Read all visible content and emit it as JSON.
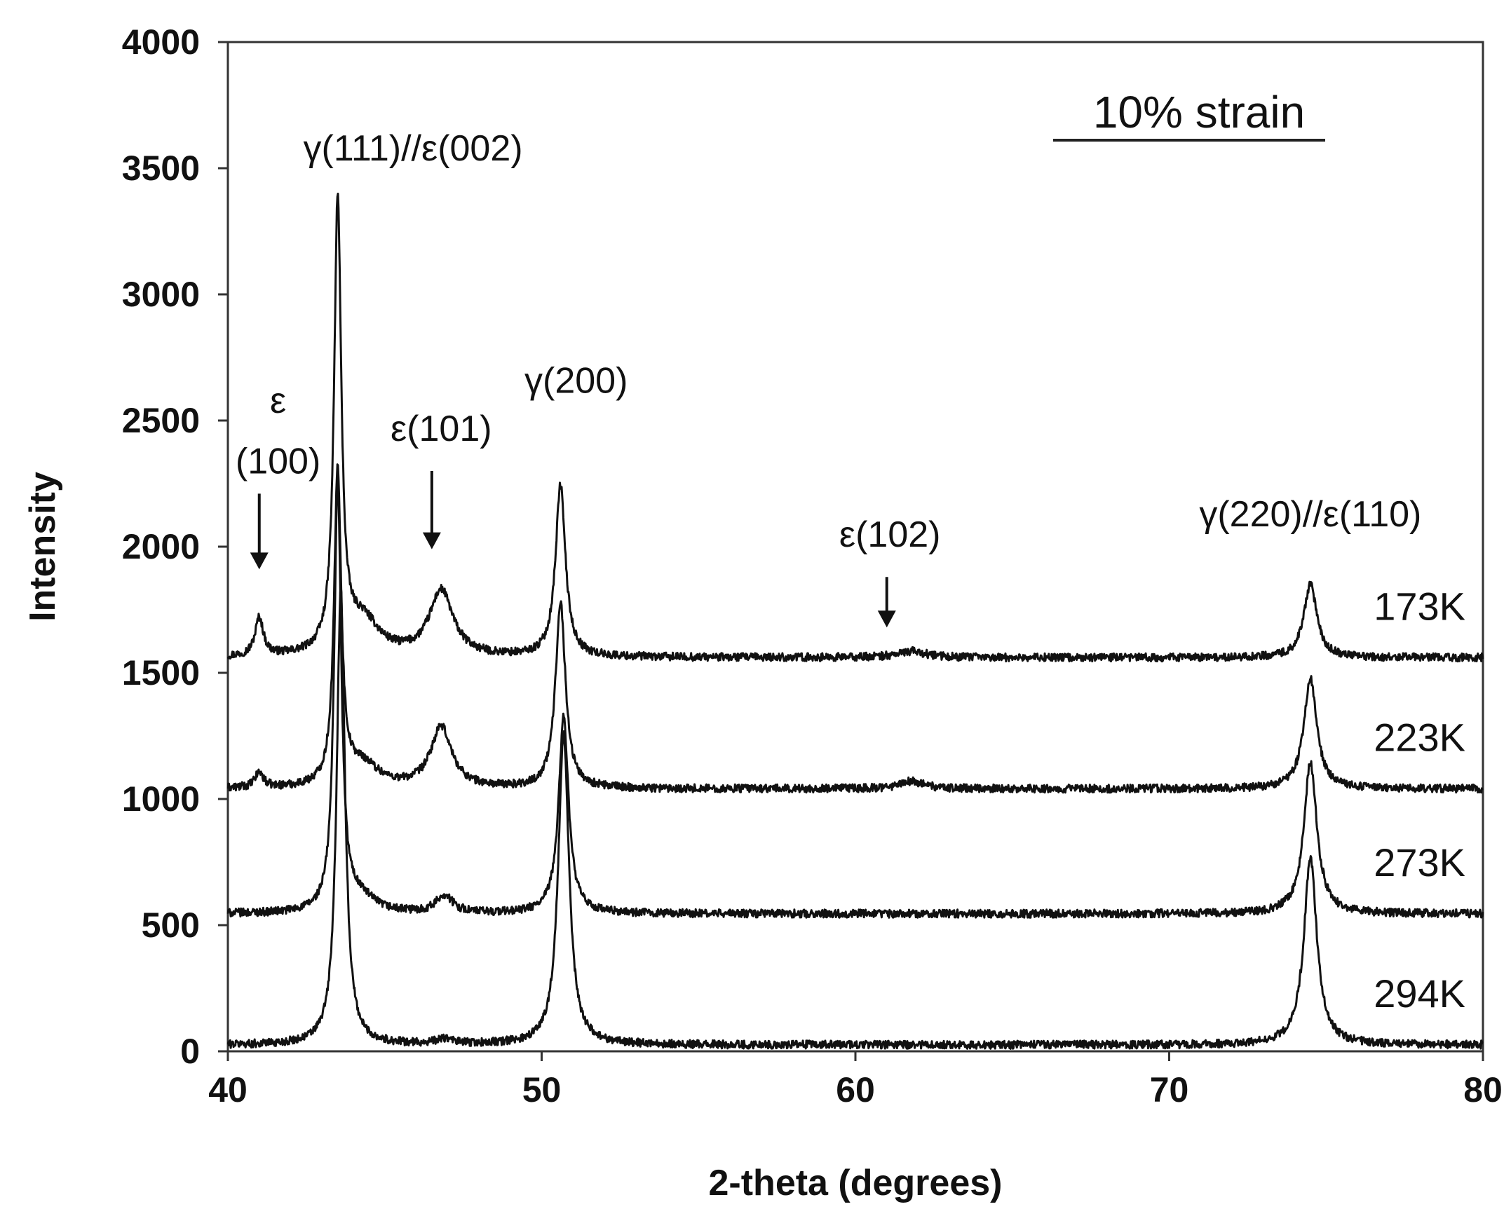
{
  "chart_data": {
    "type": "line",
    "title": "10% strain",
    "xlabel": "2-theta (degrees)",
    "ylabel": "Intensity",
    "xlim": [
      40,
      80
    ],
    "ylim": [
      0,
      4000
    ],
    "xticks": [
      "40",
      "50",
      "60",
      "70",
      "80"
    ],
    "yticks": [
      "0",
      "500",
      "1000",
      "1500",
      "2000",
      "2500",
      "3000",
      "3500",
      "4000"
    ],
    "grid": false,
    "legend": "none",
    "line_color": "#111111",
    "series": [
      {
        "name": "173K",
        "baseline": 1560,
        "peaks": [
          {
            "x": 41.0,
            "height": 150,
            "width": 0.35
          },
          {
            "x": 43.5,
            "height": 1780,
            "width": 0.3
          },
          {
            "x": 44.3,
            "height": 140,
            "width": 1.4
          },
          {
            "x": 46.8,
            "height": 260,
            "width": 1.0
          },
          {
            "x": 50.6,
            "height": 680,
            "width": 0.42
          },
          {
            "x": 61.8,
            "height": 25,
            "width": 1.2
          },
          {
            "x": 74.5,
            "height": 290,
            "width": 0.55
          }
        ]
      },
      {
        "name": "223K",
        "baseline": 1040,
        "peaks": [
          {
            "x": 41.0,
            "height": 60,
            "width": 0.35
          },
          {
            "x": 43.5,
            "height": 1250,
            "width": 0.3
          },
          {
            "x": 44.3,
            "height": 90,
            "width": 1.4
          },
          {
            "x": 46.8,
            "height": 240,
            "width": 0.9
          },
          {
            "x": 50.6,
            "height": 740,
            "width": 0.42
          },
          {
            "x": 61.8,
            "height": 30,
            "width": 1.0
          },
          {
            "x": 74.5,
            "height": 440,
            "width": 0.55
          }
        ]
      },
      {
        "name": "273K",
        "baseline": 545,
        "peaks": [
          {
            "x": 43.5,
            "height": 1700,
            "width": 0.3
          },
          {
            "x": 44.2,
            "height": 60,
            "width": 1.2
          },
          {
            "x": 46.9,
            "height": 70,
            "width": 0.7
          },
          {
            "x": 50.7,
            "height": 780,
            "width": 0.42
          },
          {
            "x": 74.5,
            "height": 600,
            "width": 0.55
          }
        ]
      },
      {
        "name": "294K",
        "baseline": 25,
        "peaks": [
          {
            "x": 43.6,
            "height": 1800,
            "width": 0.35
          },
          {
            "x": 46.9,
            "height": 20,
            "width": 0.7
          },
          {
            "x": 50.7,
            "height": 1230,
            "width": 0.45
          },
          {
            "x": 74.5,
            "height": 740,
            "width": 0.55
          }
        ]
      }
    ],
    "annotations": [
      {
        "text": "γ(111)//ε(002)",
        "x": 45.9,
        "y": 3530,
        "arrow": false
      },
      {
        "text": "ε",
        "x": 41.6,
        "y": 2530,
        "arrow": false
      },
      {
        "text": "(100)",
        "x": 41.6,
        "y": 2290,
        "arrow": true,
        "arrow_from_y": 2210,
        "arrow_to_y": 1910,
        "arrow_x": 41.0
      },
      {
        "text": "ε(101)",
        "x": 46.8,
        "y": 2420,
        "arrow": true,
        "arrow_from_y": 2300,
        "arrow_to_y": 1990,
        "arrow_x": 46.5
      },
      {
        "text": "γ(200)",
        "x": 51.1,
        "y": 2610,
        "arrow": false
      },
      {
        "text": "ε(102)",
        "x": 61.1,
        "y": 2000,
        "arrow": true,
        "arrow_from_y": 1880,
        "arrow_to_y": 1680,
        "arrow_x": 61.0
      },
      {
        "text": "γ(220)//ε(110)",
        "x": 74.5,
        "y": 2080,
        "arrow": false
      }
    ]
  }
}
